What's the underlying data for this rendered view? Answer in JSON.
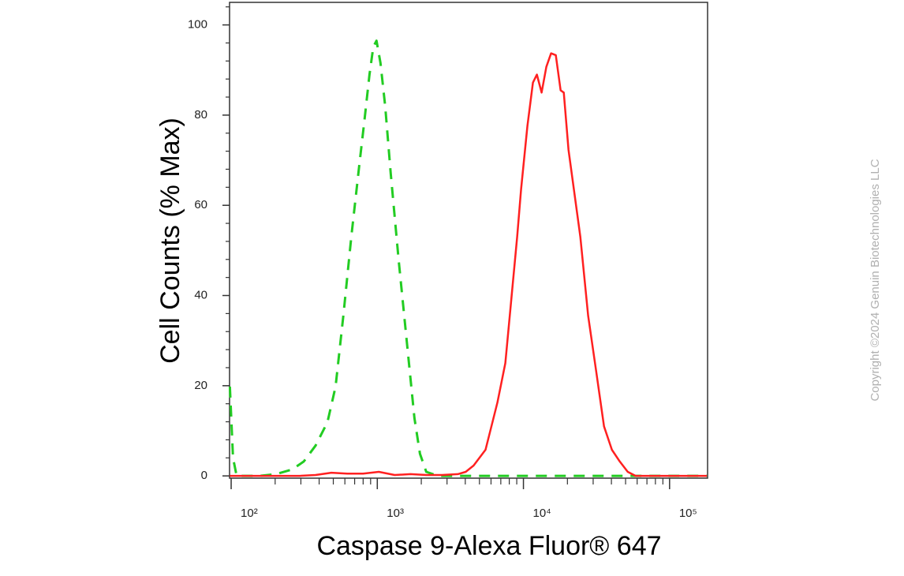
{
  "chart_data": {
    "type": "line",
    "xlabel": "Caspase 9-Alexa Fluor® 647",
    "ylabel": "Cell Counts (% Max)",
    "watermark": "Copyright ©2024 Genuin Biotechnologies LLC",
    "log_x": true,
    "xlim": [
      97.5,
      182000
    ],
    "ylim": [
      -0.5,
      105
    ],
    "xticks": [
      {
        "value": 100,
        "label": "10²"
      },
      {
        "value": 1000,
        "label": "10³"
      },
      {
        "value": 10000,
        "label": "10⁴"
      },
      {
        "value": 100000,
        "label": "10⁵"
      }
    ],
    "xminorticks": [
      200,
      300,
      400,
      500,
      600,
      700,
      800,
      900,
      2000,
      3000,
      4000,
      5000,
      6000,
      7000,
      8000,
      9000,
      20000,
      30000,
      40000,
      50000,
      60000,
      70000,
      80000,
      90000
    ],
    "yticks": [
      0,
      20,
      40,
      60,
      80,
      100
    ],
    "yminorticks": [
      4,
      8,
      12,
      16,
      24,
      28,
      32,
      36,
      44,
      48,
      52,
      56,
      64,
      68,
      72,
      76,
      84,
      88,
      92,
      96,
      104
    ],
    "series": [
      {
        "color": "#22cc22",
        "dashed": true,
        "x": [
          98,
          103,
          109,
          124,
          158,
          203,
          261,
          314,
          378,
          456,
          518,
          586,
          664,
          752,
          820,
          884,
          939,
          988,
          1051,
          1133,
          1236,
          1400,
          1585,
          1795,
          1960,
          2163,
          2606,
          180000
        ],
        "values": [
          19.8,
          4,
          0,
          0,
          0,
          0.4,
          1.4,
          3.2,
          6.7,
          11.9,
          19.8,
          35.6,
          53.1,
          68.8,
          79.3,
          89,
          95.1,
          96.5,
          91.6,
          82,
          67.1,
          47.8,
          30.3,
          12.8,
          4.9,
          0.9,
          0,
          0
        ]
      },
      {
        "color": "#ff2020",
        "dashed": false,
        "x": [
          98,
          203,
          295,
          378,
          485,
          623,
          800,
          1025,
          1315,
          1688,
          2163,
          2773,
          3556,
          4027,
          4560,
          5503,
          6640,
          7518,
          9060,
          9640,
          10650,
          11610,
          12360,
          13310,
          14350,
          15460,
          16660,
          17960,
          18880,
          20340,
          24500,
          27740,
          31420,
          35580,
          40290,
          45630,
          51760,
          58610,
          70630,
          180000
        ],
        "values": [
          0,
          0,
          0,
          0.2,
          0.7,
          0.5,
          0.5,
          0.9,
          0.2,
          0.4,
          0.2,
          0.2,
          0.4,
          0.9,
          2.3,
          5.8,
          16.3,
          25,
          53,
          63.6,
          77.6,
          87.2,
          89,
          85,
          90.7,
          93.7,
          93.3,
          85.5,
          85,
          72.3,
          53,
          35.5,
          23.3,
          11,
          5.8,
          3.2,
          0.9,
          0,
          0,
          0
        ]
      }
    ]
  }
}
